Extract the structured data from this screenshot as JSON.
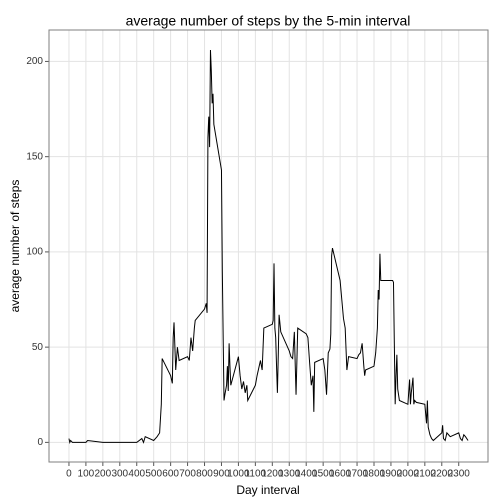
{
  "chart_data": {
    "type": "line",
    "title": "average number of steps by the 5-min interval",
    "x_label": "Day interval",
    "y_label": "average number of steps",
    "x": [
      0,
      5,
      10,
      20,
      50,
      100,
      110,
      200,
      300,
      400,
      430,
      440,
      450,
      500,
      520,
      535,
      545,
      550,
      600,
      610,
      615,
      620,
      630,
      640,
      650,
      700,
      710,
      720,
      730,
      740,
      745,
      800,
      810,
      815,
      820,
      825,
      830,
      835,
      840,
      845,
      850,
      855,
      900,
      905,
      910,
      915,
      920,
      930,
      935,
      940,
      945,
      950,
      955,
      1000,
      1010,
      1020,
      1030,
      1040,
      1050,
      1055,
      1100,
      1110,
      1130,
      1140,
      1150,
      1200,
      1205,
      1210,
      1215,
      1220,
      1225,
      1230,
      1235,
      1240,
      1250,
      1300,
      1310,
      1320,
      1330,
      1340,
      1350,
      1400,
      1410,
      1420,
      1430,
      1440,
      1445,
      1450,
      1500,
      1510,
      1520,
      1530,
      1540,
      1545,
      1550,
      1555,
      1600,
      1610,
      1620,
      1630,
      1640,
      1650,
      1700,
      1710,
      1720,
      1730,
      1740,
      1745,
      1750,
      1800,
      1810,
      1820,
      1825,
      1830,
      1835,
      1840,
      1900,
      1910,
      1915,
      1920,
      1925,
      1930,
      1935,
      1940,
      1950,
      2000,
      2010,
      2015,
      2020,
      2030,
      2035,
      2040,
      2050,
      2100,
      2110,
      2115,
      2120,
      2130,
      2140,
      2150,
      2200,
      2205,
      2210,
      2220,
      2230,
      2240,
      2250,
      2300,
      2310,
      2320,
      2330,
      2340,
      2355
    ],
    "series": [
      {
        "name": "steps",
        "color": "#000000",
        "values": [
          2,
          0,
          1,
          0,
          0,
          0,
          1,
          0,
          0,
          0,
          2,
          0,
          3,
          1,
          3,
          5,
          20,
          44,
          35,
          31,
          55,
          63,
          38,
          50,
          43,
          45,
          43,
          55,
          48,
          60,
          64,
          70,
          73,
          68,
          160,
          171,
          155,
          206,
          195,
          178,
          183,
          167,
          143,
          90,
          55,
          22,
          25,
          30,
          40,
          27,
          52,
          40,
          30,
          45,
          35,
          28,
          32,
          26,
          30,
          22,
          30,
          35,
          43,
          38,
          60,
          62,
          64,
          94,
          60,
          55,
          40,
          26,
          45,
          67,
          58,
          48,
          45,
          44,
          58,
          25,
          60,
          57,
          55,
          42,
          30,
          35,
          16,
          42,
          44,
          38,
          25,
          47,
          49,
          57,
          98,
          102,
          85,
          75,
          65,
          60,
          38,
          45,
          44,
          46,
          47,
          52,
          40,
          35,
          38,
          40,
          47,
          60,
          80,
          75,
          99,
          85,
          85,
          85,
          84,
          52,
          20,
          35,
          46,
          28,
          22,
          20,
          33,
          20,
          26,
          34,
          20,
          22,
          21,
          20,
          10,
          22,
          8,
          4,
          2,
          1,
          5,
          9,
          2,
          1,
          5,
          4,
          3,
          5,
          2,
          1,
          4,
          3,
          1
        ]
      }
    ],
    "xlim": [
      -117.75,
      2472.75
    ],
    "xticks": [
      0,
      100,
      200,
      300,
      400,
      500,
      600,
      700,
      800,
      900,
      1000,
      1100,
      1200,
      1300,
      1400,
      1500,
      1600,
      1700,
      1800,
      1900,
      2000,
      2100,
      2200,
      2300
    ],
    "ylim": [
      -10.3,
      216.5
    ],
    "yticks": [
      0,
      50,
      100,
      150,
      200
    ],
    "grid": true
  }
}
